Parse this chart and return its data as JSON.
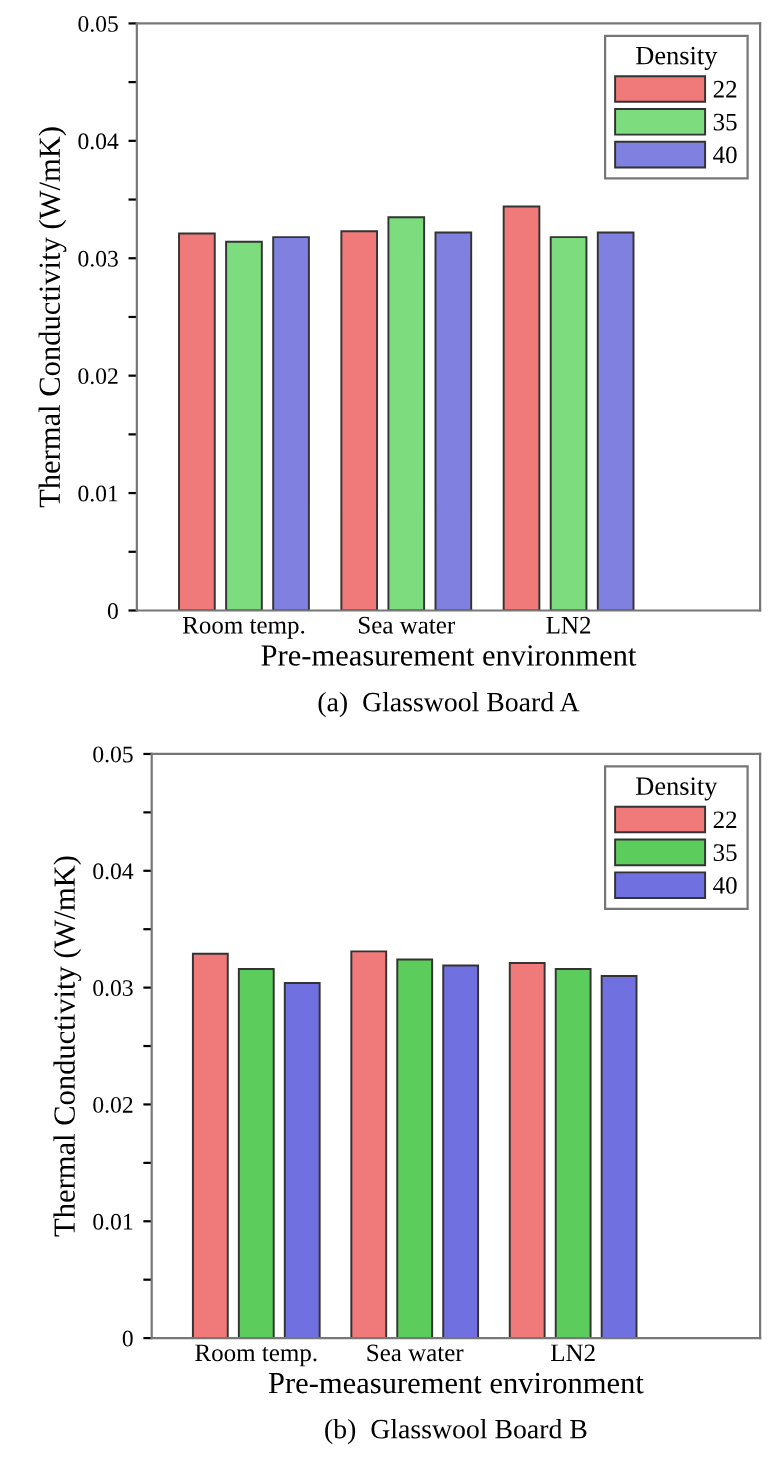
{
  "chart_data": [
    {
      "type": "bar",
      "title": "(a)  Glasswool Board A",
      "xlabel": "Pre-measurement environment",
      "ylabel": "Thermal Conductivity (W/mK)",
      "legend_title": "Density",
      "legend": "top right",
      "grid": false,
      "categories": [
        "Room temp.",
        "Sea water",
        "LN2"
      ],
      "series": [
        {
          "name": "22",
          "color": "#f07a7a",
          "values": [
            0.0321,
            0.0323,
            0.0344
          ]
        },
        {
          "name": "35",
          "color": "#7ddc7d",
          "values": [
            0.0314,
            0.0335,
            0.0318
          ]
        },
        {
          "name": "40",
          "color": "#8080e0",
          "values": [
            0.0318,
            0.0322,
            0.0322
          ]
        }
      ],
      "ylim": [
        0,
        0.05
      ],
      "yticks": [
        0,
        {
          "value": 0.005,
          "label": null
        },
        0.01,
        {
          "value": 0.015,
          "label": null
        },
        0.02,
        {
          "value": 0.025,
          "label": null
        },
        0.03,
        {
          "value": 0.035,
          "label": null
        },
        0.04,
        {
          "value": 0.045,
          "label": null
        },
        0.05
      ]
    },
    {
      "type": "bar",
      "title": "(b)  Glasswool Board B",
      "xlabel": "Pre-measurement environment",
      "ylabel": "Thermal Conductivity (W/mK)",
      "legend_title": "Density",
      "legend": "top right",
      "grid": false,
      "categories": [
        "Room temp.",
        "Sea water",
        "LN2"
      ],
      "series": [
        {
          "name": "22",
          "color": "#f07a7a",
          "values": [
            0.0329,
            0.0331,
            0.0321
          ]
        },
        {
          "name": "35",
          "color": "#5ccc5c",
          "values": [
            0.0316,
            0.0324,
            0.0316
          ]
        },
        {
          "name": "40",
          "color": "#7070e0",
          "values": [
            0.0304,
            0.0319,
            0.031
          ]
        }
      ],
      "ylim": [
        0,
        0.05
      ],
      "yticks": [
        0,
        {
          "value": 0.005,
          "label": null
        },
        0.01,
        {
          "value": 0.015,
          "label": null
        },
        0.02,
        {
          "value": 0.025,
          "label": null
        },
        0.03,
        {
          "value": 0.035,
          "label": null
        },
        0.04,
        {
          "value": 0.045,
          "label": null
        },
        0.05
      ]
    }
  ]
}
